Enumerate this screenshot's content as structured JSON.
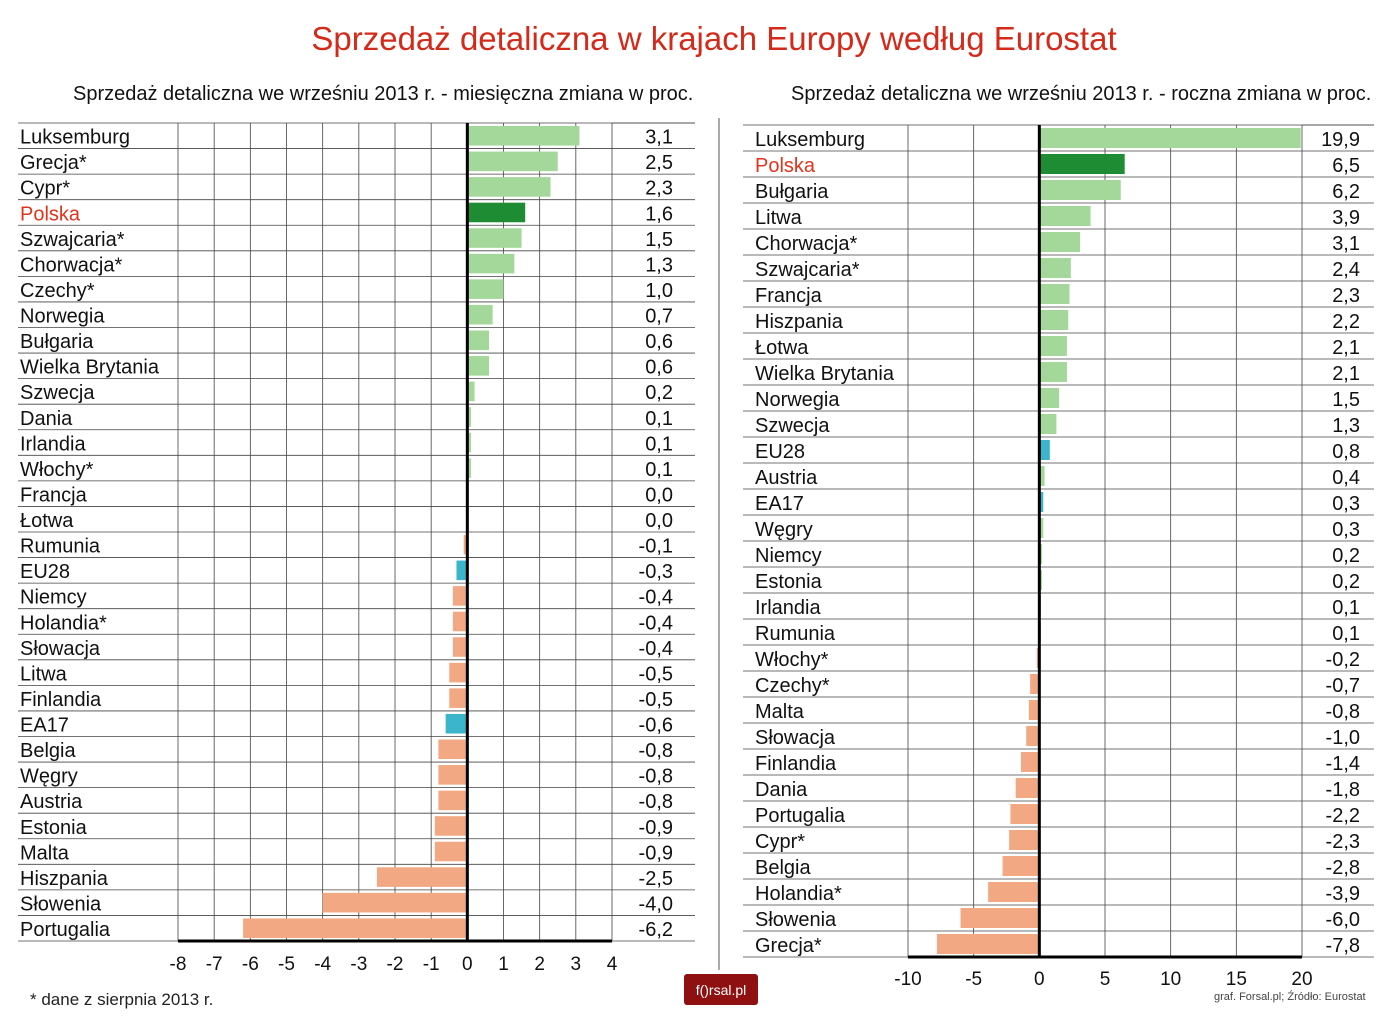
{
  "title": "Sprzedaż detaliczna w krajach Europy według Eurostat",
  "footnote": "* dane z sierpnia 2013 r.",
  "source": "graf. Forsal.pl; Źródło: Eurostat",
  "logo": "f()rsal.pl",
  "colors": {
    "positive": "#a3d89a",
    "highlight": "#1e8c32",
    "negative": "#f2a882",
    "aggregate": "#3bb5cc",
    "highlight_label": "#e0341c",
    "title": "#d42a1a"
  },
  "chart_data": [
    {
      "type": "bar",
      "orientation": "horizontal",
      "title": "Sprzedaż detaliczna we wrześniu 2013 r. - miesięczna zmiana w proc.",
      "xlim": [
        -8,
        4
      ],
      "xticks": [
        -8,
        -7,
        -6,
        -5,
        -4,
        -3,
        -2,
        -1,
        0,
        1,
        2,
        3,
        4
      ],
      "grid": true,
      "highlight": "Polska",
      "aggregates": [
        "EU28",
        "EA17"
      ],
      "categories": [
        "Luksemburg",
        "Grecja*",
        "Cypr*",
        "Polska",
        "Szwajcaria*",
        "Chorwacja*",
        "Czechy*",
        "Norwegia",
        "Bułgaria",
        "Wielka Brytania",
        "Szwecja",
        "Dania",
        "Irlandia",
        "Włochy*",
        "Francja",
        "Łotwa",
        "Rumunia",
        "EU28",
        "Niemcy",
        "Holandia*",
        "Słowacja",
        "Litwa",
        "Finlandia",
        "EA17",
        "Belgia",
        "Węgry",
        "Austria",
        "Estonia",
        "Malta",
        "Hiszpania",
        "Słowenia",
        "Portugalia"
      ],
      "values": [
        3.1,
        2.5,
        2.3,
        1.6,
        1.5,
        1.3,
        1.0,
        0.7,
        0.6,
        0.6,
        0.2,
        0.1,
        0.1,
        0.1,
        0.0,
        0.0,
        -0.1,
        -0.3,
        -0.4,
        -0.4,
        -0.4,
        -0.5,
        -0.5,
        -0.6,
        -0.8,
        -0.8,
        -0.8,
        -0.9,
        -0.9,
        -2.5,
        -4.0,
        -6.2
      ],
      "labels": [
        "3,1",
        "2,5",
        "2,3",
        "1,6",
        "1,5",
        "1,3",
        "1,0",
        "0,7",
        "0,6",
        "0,6",
        "0,2",
        "0,1",
        "0,1",
        "0,1",
        "0,0",
        "0,0",
        "-0,1",
        "-0,3",
        "-0,4",
        "-0,4",
        "-0,4",
        "-0,5",
        "-0,5",
        "-0,6",
        "-0,8",
        "-0,8",
        "-0,8",
        "-0,9",
        "-0,9",
        "-2,5",
        "-4,0",
        "-6,2"
      ]
    },
    {
      "type": "bar",
      "orientation": "horizontal",
      "title": "Sprzedaż detaliczna we wrześniu 2013 r. - roczna zmiana w proc.",
      "xlim": [
        -10,
        20
      ],
      "xticks": [
        -10,
        -5,
        0,
        5,
        10,
        15,
        20
      ],
      "grid": true,
      "highlight": "Polska",
      "aggregates": [
        "EU28",
        "EA17"
      ],
      "categories": [
        "Luksemburg",
        "Polska",
        "Bułgaria",
        "Litwa",
        "Chorwacja*",
        "Szwajcaria*",
        "Francja",
        "Hiszpania",
        "Łotwa",
        "Wielka Brytania",
        "Norwegia",
        "Szwecja",
        "EU28",
        "Austria",
        "EA17",
        "Węgry",
        "Niemcy",
        "Estonia",
        "Irlandia",
        "Rumunia",
        "Włochy*",
        "Czechy*",
        "Malta",
        "Słowacja",
        "Finlandia",
        "Dania",
        "Portugalia",
        "Cypr*",
        "Belgia",
        "Holandia*",
        "Słowenia",
        "Grecja*"
      ],
      "values": [
        19.9,
        6.5,
        6.2,
        3.9,
        3.1,
        2.4,
        2.3,
        2.2,
        2.1,
        2.1,
        1.5,
        1.3,
        0.8,
        0.4,
        0.3,
        0.3,
        0.2,
        0.2,
        0.1,
        0.1,
        -0.2,
        -0.7,
        -0.8,
        -1.0,
        -1.4,
        -1.8,
        -2.2,
        -2.3,
        -2.8,
        -3.9,
        -6.0,
        -7.8
      ],
      "labels": [
        "19,9",
        "6,5",
        "6,2",
        "3,9",
        "3,1",
        "2,4",
        "2,3",
        "2,2",
        "2,1",
        "2,1",
        "1,5",
        "1,3",
        "0,8",
        "0,4",
        "0,3",
        "0,3",
        "0,2",
        "0,2",
        "0,1",
        "0,1",
        "-0,2",
        "-0,7",
        "-0,8",
        "-1,0",
        "-1,4",
        "-1,8",
        "-2,2",
        "-2,3",
        "-2,8",
        "-3,9",
        "-6,0",
        "-7,8"
      ]
    }
  ]
}
